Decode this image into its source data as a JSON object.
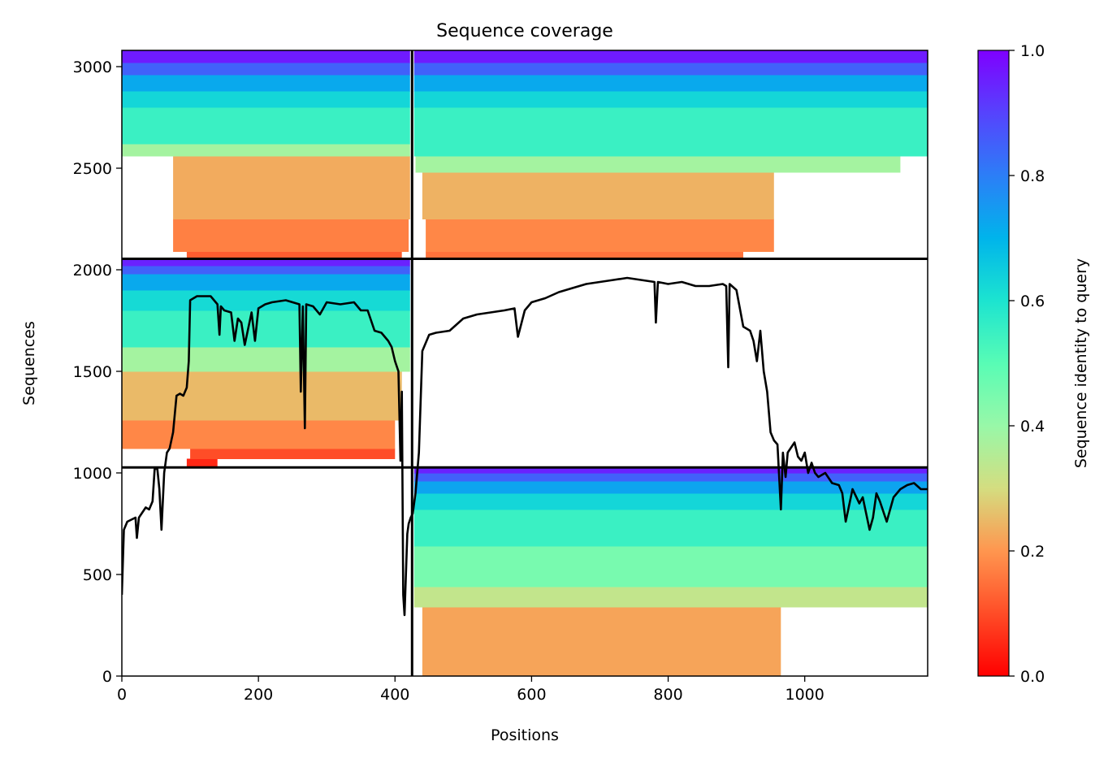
{
  "chart_data": {
    "type": "heatmap",
    "title": "Sequence coverage",
    "xlabel": "Positions",
    "ylabel": "Sequences",
    "xlim": [
      0,
      1180
    ],
    "ylim": [
      0,
      3080
    ],
    "xticks": [
      0,
      200,
      400,
      600,
      800,
      1000
    ],
    "yticks": [
      0,
      500,
      1000,
      1500,
      2000,
      2500,
      3000
    ],
    "grid": false,
    "colormap": "rainbow_r",
    "colorbar": {
      "label": "Sequence identity to query",
      "range": [
        0,
        1
      ],
      "ticks": [
        0.0,
        0.2,
        0.4,
        0.6,
        0.8,
        1.0
      ],
      "tick_labels": [
        "0.0",
        "0.2",
        "0.4",
        "0.6",
        "0.8",
        "1.0"
      ]
    },
    "chain_boundaries": {
      "x": [
        425
      ],
      "y": [
        1027,
        2054
      ]
    },
    "blocks": [
      {
        "name": "chain A top",
        "x_range": [
          0,
          422
        ],
        "y_range": [
          2054,
          3080
        ],
        "bands": [
          {
            "y": [
              2054,
              2090
            ],
            "identity": 0.12,
            "x": [
              95,
              410
            ]
          },
          {
            "y": [
              2090,
              2250
            ],
            "identity": 0.17,
            "x": [
              75,
              420
            ]
          },
          {
            "y": [
              2250,
              2560
            ],
            "identity": 0.23,
            "x": [
              75,
              422
            ]
          },
          {
            "y": [
              2560,
              2620
            ],
            "identity": 0.38,
            "x": [
              0,
              422
            ]
          },
          {
            "y": [
              2620,
              2800
            ],
            "identity": 0.55,
            "x": [
              0,
              422
            ]
          },
          {
            "y": [
              2800,
              2880
            ],
            "identity": 0.63,
            "x": [
              0,
              422
            ]
          },
          {
            "y": [
              2880,
              2960
            ],
            "identity": 0.72,
            "x": [
              0,
              422
            ]
          },
          {
            "y": [
              2960,
              3020
            ],
            "identity": 0.85,
            "x": [
              0,
              422
            ]
          },
          {
            "y": [
              3020,
              3080
            ],
            "identity": 0.96,
            "x": [
              0,
              422
            ]
          }
        ]
      },
      {
        "name": "chain B top",
        "x_range": [
          428,
          1180
        ],
        "y_range": [
          2054,
          3080
        ],
        "bands": [
          {
            "y": [
              2054,
              2090
            ],
            "identity": 0.15,
            "x": [
              445,
              910
            ]
          },
          {
            "y": [
              2090,
              2250
            ],
            "identity": 0.18,
            "x": [
              445,
              955
            ]
          },
          {
            "y": [
              2250,
              2480
            ],
            "identity": 0.24,
            "x": [
              440,
              955
            ]
          },
          {
            "y": [
              2480,
              2560
            ],
            "identity": 0.38,
            "x": [
              430,
              1140
            ]
          },
          {
            "y": [
              2560,
              2800
            ],
            "identity": 0.55,
            "x": [
              428,
              1180
            ]
          },
          {
            "y": [
              2800,
              2880
            ],
            "identity": 0.63,
            "x": [
              428,
              1180
            ]
          },
          {
            "y": [
              2880,
              2960
            ],
            "identity": 0.72,
            "x": [
              428,
              1180
            ]
          },
          {
            "y": [
              2960,
              3020
            ],
            "identity": 0.85,
            "x": [
              428,
              1180
            ]
          },
          {
            "y": [
              3020,
              3080
            ],
            "identity": 0.96,
            "x": [
              428,
              1180
            ]
          }
        ]
      },
      {
        "name": "chain A paired",
        "x_range": [
          0,
          422
        ],
        "y_range": [
          1027,
          2054
        ],
        "bands": [
          {
            "y": [
              1027,
              1070
            ],
            "identity": 0.05,
            "x": [
              95,
              140
            ]
          },
          {
            "y": [
              1070,
              1120
            ],
            "identity": 0.1,
            "x": [
              100,
              400
            ]
          },
          {
            "y": [
              1120,
              1260
            ],
            "identity": 0.18,
            "x": [
              0,
              400
            ]
          },
          {
            "y": [
              1260,
              1500
            ],
            "identity": 0.25,
            "x": [
              0,
              410
            ]
          },
          {
            "y": [
              1500,
              1620
            ],
            "identity": 0.38,
            "x": [
              0,
              422
            ]
          },
          {
            "y": [
              1620,
              1800
            ],
            "identity": 0.55,
            "x": [
              0,
              422
            ]
          },
          {
            "y": [
              1800,
              1900
            ],
            "identity": 0.62,
            "x": [
              0,
              422
            ]
          },
          {
            "y": [
              1900,
              1980
            ],
            "identity": 0.72,
            "x": [
              0,
              422
            ]
          },
          {
            "y": [
              1980,
              2020
            ],
            "identity": 0.85,
            "x": [
              0,
              422
            ]
          },
          {
            "y": [
              2020,
              2054
            ],
            "identity": 0.95,
            "x": [
              0,
              422
            ]
          }
        ]
      },
      {
        "name": "chain B paired",
        "x_range": [
          428,
          1180
        ],
        "y_range": [
          0,
          1027
        ],
        "bands": [
          {
            "y": [
              0,
              340
            ],
            "identity": 0.22,
            "x": [
              440,
              965
            ]
          },
          {
            "y": [
              340,
              440
            ],
            "identity": 0.33,
            "x": [
              428,
              1180
            ]
          },
          {
            "y": [
              440,
              640
            ],
            "identity": 0.45,
            "x": [
              428,
              1180
            ]
          },
          {
            "y": [
              640,
              820
            ],
            "identity": 0.55,
            "x": [
              428,
              1180
            ]
          },
          {
            "y": [
              820,
              900
            ],
            "identity": 0.63,
            "x": [
              428,
              1180
            ]
          },
          {
            "y": [
              900,
              960
            ],
            "identity": 0.73,
            "x": [
              428,
              1180
            ]
          },
          {
            "y": [
              960,
              1000
            ],
            "identity": 0.85,
            "x": [
              428,
              1180
            ]
          },
          {
            "y": [
              1000,
              1027
            ],
            "identity": 0.95,
            "x": [
              428,
              1180
            ]
          }
        ]
      }
    ],
    "coverage_line": {
      "color": "#000000",
      "x": [
        0,
        3,
        8,
        20,
        22,
        25,
        35,
        40,
        45,
        48,
        52,
        55,
        58,
        62,
        66,
        70,
        75,
        80,
        85,
        90,
        95,
        98,
        100,
        110,
        130,
        140,
        143,
        145,
        150,
        160,
        165,
        170,
        175,
        180,
        190,
        195,
        200,
        210,
        220,
        240,
        260,
        262,
        265,
        268,
        270,
        280,
        290,
        300,
        320,
        340,
        350,
        360,
        370,
        380,
        390,
        395,
        400,
        405,
        408,
        410,
        412,
        414,
        416,
        418,
        420,
        423,
        426,
        430,
        435,
        440,
        450,
        460,
        480,
        500,
        520,
        540,
        560,
        575,
        580,
        590,
        600,
        620,
        640,
        660,
        680,
        700,
        720,
        740,
        760,
        780,
        782,
        785,
        800,
        820,
        840,
        860,
        880,
        885,
        888,
        890,
        900,
        910,
        920,
        925,
        930,
        935,
        940,
        945,
        950,
        955,
        960,
        965,
        968,
        972,
        975,
        985,
        990,
        995,
        1000,
        1005,
        1010,
        1015,
        1020,
        1030,
        1040,
        1050,
        1055,
        1060,
        1070,
        1080,
        1085,
        1090,
        1095,
        1100,
        1105,
        1110,
        1120,
        1130,
        1140,
        1150,
        1160,
        1170,
        1180
      ],
      "y": [
        400,
        720,
        760,
        780,
        680,
        780,
        830,
        820,
        860,
        1020,
        1020,
        920,
        720,
        1000,
        1100,
        1120,
        1200,
        1380,
        1390,
        1380,
        1420,
        1550,
        1850,
        1870,
        1870,
        1830,
        1680,
        1820,
        1800,
        1790,
        1650,
        1760,
        1740,
        1630,
        1790,
        1650,
        1810,
        1830,
        1840,
        1850,
        1830,
        1400,
        1820,
        1220,
        1830,
        1820,
        1780,
        1840,
        1830,
        1840,
        1800,
        1800,
        1700,
        1690,
        1650,
        1620,
        1550,
        1500,
        1060,
        1400,
        400,
        300,
        500,
        700,
        750,
        780,
        800,
        900,
        1100,
        1600,
        1680,
        1690,
        1700,
        1760,
        1780,
        1790,
        1800,
        1810,
        1670,
        1800,
        1840,
        1860,
        1890,
        1910,
        1930,
        1940,
        1950,
        1960,
        1950,
        1940,
        1740,
        1940,
        1930,
        1940,
        1920,
        1920,
        1930,
        1920,
        1520,
        1930,
        1900,
        1720,
        1700,
        1650,
        1550,
        1700,
        1500,
        1400,
        1200,
        1160,
        1140,
        820,
        1100,
        980,
        1100,
        1150,
        1080,
        1060,
        1100,
        1000,
        1050,
        1000,
        980,
        1000,
        950,
        940,
        900,
        760,
        920,
        850,
        880,
        800,
        720,
        780,
        900,
        860,
        760,
        880,
        920,
        940,
        950,
        920,
        920
      ]
    }
  }
}
